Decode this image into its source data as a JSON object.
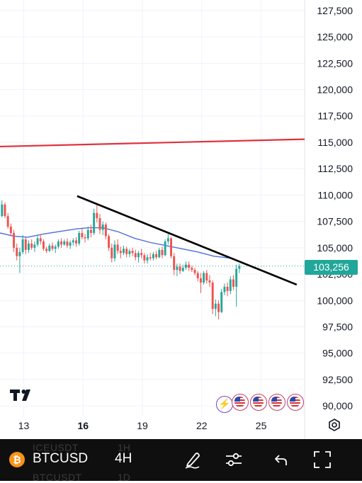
{
  "chart_data": {
    "type": "candlestick",
    "symbol": "BTCUSD",
    "interval": "4H",
    "y_axis": {
      "ticks": [
        127500,
        125000,
        122500,
        120000,
        117500,
        115000,
        112500,
        110000,
        107500,
        105000,
        102500,
        100000,
        97500,
        95000,
        92500,
        90000
      ],
      "labels": [
        "127,500",
        "125,000",
        "122,500",
        "120,000",
        "117,500",
        "115,000",
        "112,500",
        "110,000",
        "107,500",
        "105,000",
        "102,500",
        "100,000",
        "97,500",
        "95,000",
        "92,500",
        "90,000"
      ],
      "range": [
        89000,
        128500
      ]
    },
    "x_axis": {
      "labels": [
        {
          "text": "13",
          "day": 13,
          "bold": false
        },
        {
          "text": "16",
          "day": 16,
          "bold": true
        },
        {
          "text": "19",
          "day": 19,
          "bold": false
        },
        {
          "text": "22",
          "day": 22,
          "bold": false
        },
        {
          "text": "25",
          "day": 25,
          "bold": false
        }
      ],
      "range": [
        11.8,
        27.2
      ]
    },
    "last_price": 103256,
    "last_price_label": "103,256",
    "horizontal_line": {
      "price": 114600,
      "slope_per_day": 45,
      "start_day": 11.8,
      "color": "#e0313d"
    },
    "trend_line": {
      "start": {
        "day": 15.7,
        "price": 109900
      },
      "end": {
        "day": 26.8,
        "price": 101500
      },
      "color": "#000000"
    },
    "moving_average": {
      "color": "#4b6fd8",
      "points": [
        [
          11.8,
          106400
        ],
        [
          12.5,
          106100
        ],
        [
          13.2,
          106000
        ],
        [
          14.0,
          106300
        ],
        [
          15.0,
          106600
        ],
        [
          15.7,
          106800
        ],
        [
          16.3,
          106900
        ],
        [
          17.0,
          106900
        ],
        [
          17.8,
          106500
        ],
        [
          18.6,
          105900
        ],
        [
          19.4,
          105500
        ],
        [
          20.2,
          105200
        ],
        [
          21.0,
          104900
        ],
        [
          21.8,
          104600
        ],
        [
          22.6,
          104200
        ],
        [
          23.5,
          104000
        ]
      ]
    },
    "candles": [
      [
        11.9,
        108000,
        109500,
        107900,
        109100
      ],
      [
        12.05,
        109100,
        109300,
        107800,
        108000
      ],
      [
        12.2,
        108000,
        108300,
        106800,
        107000
      ],
      [
        12.35,
        107000,
        107300,
        106100,
        106400
      ],
      [
        12.5,
        106400,
        106700,
        104600,
        105000
      ],
      [
        12.65,
        105000,
        105400,
        103800,
        104200
      ],
      [
        12.8,
        104200,
        105000,
        102600,
        104600
      ],
      [
        12.95,
        104600,
        106200,
        104400,
        105800
      ],
      [
        13.1,
        105800,
        106000,
        104400,
        104800
      ],
      [
        13.25,
        104800,
        105700,
        104500,
        105400
      ],
      [
        13.4,
        105400,
        105800,
        104800,
        105000
      ],
      [
        13.55,
        105000,
        105600,
        104600,
        105300
      ],
      [
        13.7,
        105300,
        106200,
        105100,
        105900
      ],
      [
        13.85,
        105900,
        106300,
        105300,
        105600
      ],
      [
        14.0,
        105600,
        105800,
        104700,
        104900
      ],
      [
        14.15,
        104900,
        105100,
        104500,
        104700
      ],
      [
        14.3,
        104700,
        105400,
        104600,
        105200
      ],
      [
        14.45,
        105200,
        105500,
        104700,
        104900
      ],
      [
        14.6,
        104900,
        105300,
        104500,
        105100
      ],
      [
        14.75,
        105100,
        105800,
        104900,
        105600
      ],
      [
        14.9,
        105600,
        105900,
        105000,
        105300
      ],
      [
        15.05,
        105300,
        105800,
        105200,
        105600
      ],
      [
        15.2,
        105600,
        105900,
        105000,
        105200
      ],
      [
        15.35,
        105200,
        105700,
        104900,
        105500
      ],
      [
        15.5,
        105500,
        105900,
        105200,
        105700
      ],
      [
        15.65,
        105700,
        106000,
        105100,
        105400
      ],
      [
        15.8,
        105400,
        106600,
        105200,
        106400
      ],
      [
        15.95,
        106400,
        106900,
        105800,
        106000
      ],
      [
        16.1,
        106000,
        106300,
        105500,
        105900
      ],
      [
        16.25,
        105900,
        107000,
        105700,
        106700
      ],
      [
        16.4,
        106700,
        107200,
        106000,
        106400
      ],
      [
        16.55,
        106400,
        108700,
        106200,
        108300
      ],
      [
        16.7,
        108300,
        109100,
        107400,
        107800
      ],
      [
        16.85,
        107800,
        108200,
        106300,
        106700
      ],
      [
        17.0,
        106700,
        107500,
        106200,
        107200
      ],
      [
        17.15,
        107200,
        107400,
        105800,
        106100
      ],
      [
        17.3,
        106100,
        106300,
        104700,
        105000
      ],
      [
        17.45,
        105000,
        105400,
        103600,
        104000
      ],
      [
        17.6,
        104000,
        105700,
        103700,
        105300
      ],
      [
        17.75,
        105300,
        105800,
        104400,
        104700
      ],
      [
        17.9,
        104700,
        105100,
        104000,
        104500
      ],
      [
        18.05,
        104500,
        105200,
        104300,
        104900
      ],
      [
        18.2,
        104900,
        105100,
        104100,
        104400
      ],
      [
        18.35,
        104400,
        104900,
        104100,
        104700
      ],
      [
        18.5,
        104700,
        105000,
        104200,
        104500
      ],
      [
        18.65,
        104500,
        104800,
        103800,
        104100
      ],
      [
        18.8,
        104100,
        104700,
        103600,
        104500
      ],
      [
        18.95,
        104500,
        104900,
        104000,
        104300
      ],
      [
        19.1,
        104300,
        104500,
        103500,
        103800
      ],
      [
        19.25,
        103800,
        104400,
        103500,
        104100
      ],
      [
        19.4,
        104100,
        104500,
        103800,
        104000
      ],
      [
        19.55,
        104000,
        104600,
        103800,
        104400
      ],
      [
        19.7,
        104400,
        104700,
        103900,
        104100
      ],
      [
        19.85,
        104100,
        105000,
        104000,
        104800
      ],
      [
        20.0,
        104800,
        105100,
        104000,
        104300
      ],
      [
        20.15,
        104300,
        105800,
        104200,
        105600
      ],
      [
        20.3,
        105600,
        106300,
        105300,
        105900
      ],
      [
        20.45,
        105900,
        106000,
        104000,
        104200
      ],
      [
        20.6,
        104200,
        104500,
        102400,
        102900
      ],
      [
        20.75,
        102900,
        103500,
        102300,
        103200
      ],
      [
        20.9,
        103200,
        103500,
        102500,
        102800
      ],
      [
        21.05,
        102800,
        103400,
        102700,
        103100
      ],
      [
        21.2,
        103100,
        103700,
        102900,
        103400
      ],
      [
        21.35,
        103400,
        103700,
        102800,
        103100
      ],
      [
        21.5,
        103100,
        103300,
        102700,
        102900
      ],
      [
        21.65,
        102900,
        103100,
        102400,
        102600
      ],
      [
        21.8,
        102600,
        102800,
        101800,
        102100
      ],
      [
        21.95,
        102100,
        102600,
        100700,
        101700
      ],
      [
        22.1,
        101700,
        102800,
        101500,
        102600
      ],
      [
        22.25,
        102600,
        102900,
        101600,
        101900
      ],
      [
        22.4,
        101900,
        102400,
        101300,
        101700
      ],
      [
        22.55,
        101700,
        101900,
        98700,
        99200
      ],
      [
        22.7,
        99200,
        100100,
        98500,
        99700
      ],
      [
        22.85,
        99700,
        100000,
        98200,
        98900
      ],
      [
        23.0,
        98900,
        101100,
        98800,
        100800
      ],
      [
        23.15,
        100800,
        101600,
        100500,
        101300
      ],
      [
        23.3,
        101300,
        101700,
        100400,
        100900
      ],
      [
        23.45,
        100900,
        102300,
        100600,
        102000
      ],
      [
        23.6,
        102000,
        102400,
        101000,
        101300
      ],
      [
        23.75,
        101300,
        103400,
        99400,
        103000
      ],
      [
        23.9,
        103000,
        103500,
        102600,
        103256
      ]
    ],
    "colors": {
      "up": "#26a69a",
      "down": "#ef5350",
      "grid": "#f0f3fa",
      "price_line": "#21a79a"
    }
  },
  "branding": {
    "logo": "TV"
  },
  "event_icons": [
    "lightning-icon",
    "us-flag-icon",
    "us-flag-icon",
    "us-flag-icon",
    "us-flag-icon"
  ],
  "toolbar": {
    "symbol": "BTCUSD",
    "interval": "4H",
    "ghost_above_symbol": "ICEUSDT",
    "ghost_above_interval": "1H",
    "ghost_below_symbol": "BTCUSDT",
    "ghost_below_interval": "1D",
    "coin_glyph": "₿"
  }
}
